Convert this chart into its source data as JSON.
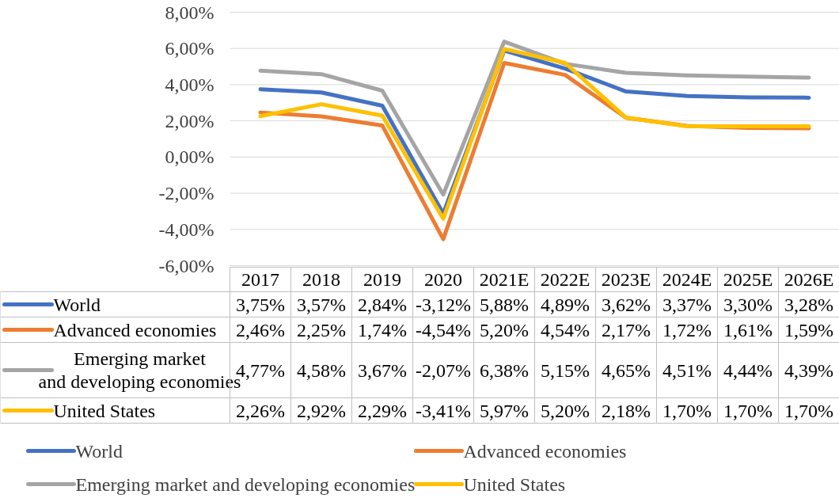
{
  "chart_data": {
    "type": "line",
    "categories": [
      "2017",
      "2018",
      "2019",
      "2020",
      "2021E",
      "2022E",
      "2023E",
      "2024E",
      "2025E",
      "2026E"
    ],
    "ylim": [
      -6,
      8
    ],
    "yticks": [
      {
        "value": -6,
        "label": "-6,00%"
      },
      {
        "value": -4,
        "label": "-4,00%"
      },
      {
        "value": -2,
        "label": "-2,00%"
      },
      {
        "value": 0,
        "label": "0,00%"
      },
      {
        "value": 2,
        "label": "2,00%"
      },
      {
        "value": 4,
        "label": "4,00%"
      },
      {
        "value": 6,
        "label": "6,00%"
      },
      {
        "value": 8,
        "label": "8,00%"
      }
    ],
    "grid": "y",
    "legend": "bottom",
    "line_style": "solid",
    "marker": "none",
    "series": [
      {
        "name": "World",
        "color": "#4472c4",
        "values": [
          3.75,
          3.57,
          2.84,
          -3.12,
          5.88,
          4.89,
          3.62,
          3.37,
          3.3,
          3.28
        ],
        "value_labels": [
          "3,75%",
          "3,57%",
          "2,84%",
          "-3,12%",
          "5,88%",
          "4,89%",
          "3,62%",
          "3,37%",
          "3,30%",
          "3,28%"
        ]
      },
      {
        "name": "Advanced economies",
        "color": "#ed7d31",
        "values": [
          2.46,
          2.25,
          1.74,
          -4.54,
          5.2,
          4.54,
          2.17,
          1.72,
          1.61,
          1.59
        ],
        "value_labels": [
          "2,46%",
          "2,25%",
          "1,74%",
          "-4,54%",
          "5,20%",
          "4,54%",
          "2,17%",
          "1,72%",
          "1,61%",
          "1,59%"
        ]
      },
      {
        "name": "Emerging market and developing economies",
        "color": "#a5a5a5",
        "values": [
          4.77,
          4.58,
          3.67,
          -2.07,
          6.38,
          5.15,
          4.65,
          4.51,
          4.44,
          4.39
        ],
        "value_labels": [
          "4,77%",
          "4,58%",
          "3,67%",
          "-2,07%",
          "6,38%",
          "5,15%",
          "4,65%",
          "4,51%",
          "4,44%",
          "4,39%"
        ]
      },
      {
        "name": "United States",
        "color": "#ffc000",
        "values": [
          2.26,
          2.92,
          2.29,
          -3.41,
          5.97,
          5.2,
          2.18,
          1.7,
          1.7,
          1.7
        ],
        "value_labels": [
          "2,26%",
          "2,92%",
          "2,29%",
          "-3,41%",
          "5,97%",
          "5,20%",
          "2,18%",
          "1,70%",
          "1,70%",
          "1,70%"
        ]
      }
    ]
  }
}
